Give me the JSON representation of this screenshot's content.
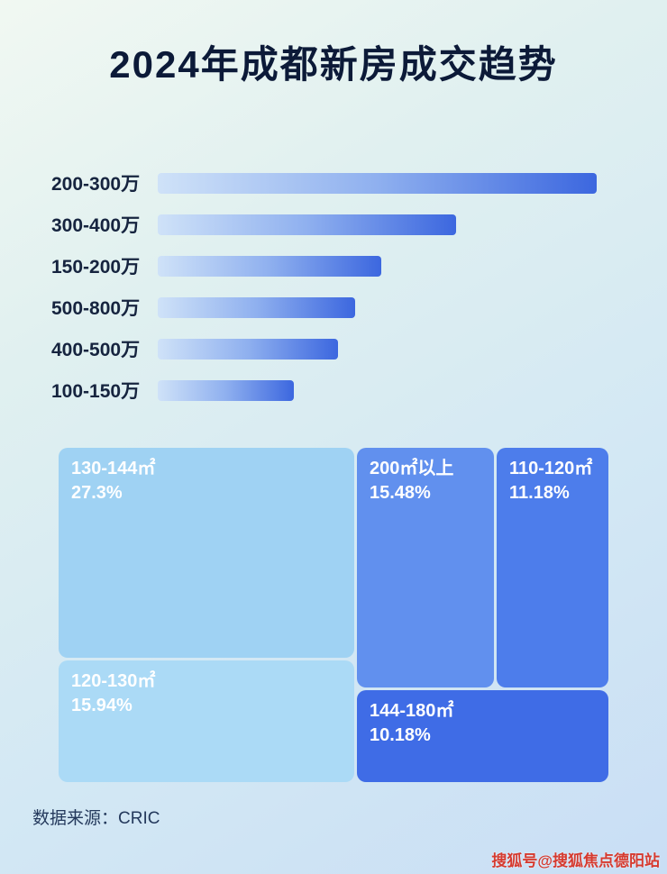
{
  "title": "2024年成都新房成交趋势",
  "chart_data": [
    {
      "type": "bar",
      "orientation": "horizontal",
      "title": "2024年成都新房成交趋势",
      "categories": [
        "200-300万",
        "300-400万",
        "150-200万",
        "500-800万",
        "400-500万",
        "100-150万"
      ],
      "values": [
        100,
        68,
        51,
        45,
        41,
        31
      ],
      "value_unit": "relative length, % of longest bar (no numeric labels shown)",
      "grid": false,
      "legend": false
    },
    {
      "type": "treemap",
      "blocks": [
        {
          "label": "130-144㎡",
          "value": "27.3%",
          "color": "#9fd2f3"
        },
        {
          "label": "200㎡以上",
          "value": "15.48%",
          "color": "#6190ee"
        },
        {
          "label": "110-120㎡",
          "value": "11.18%",
          "color": "#4d7deb"
        },
        {
          "label": "120-130㎡",
          "value": "15.94%",
          "color": "#abdaf6"
        },
        {
          "label": "144-180㎡",
          "value": "10.18%",
          "color": "#3f6ce6"
        }
      ]
    }
  ],
  "source": "数据来源：CRIC",
  "watermark": "搜狐号@搜狐焦点德阳站",
  "colors": {
    "title_text": "#0c1a38",
    "bar_gradient_start": "#cfe2f8",
    "bar_gradient_end": "#3c67df",
    "background_top": "#f1f8f2",
    "background_bottom": "#c9def5",
    "watermark_red": "#d63a2f"
  }
}
